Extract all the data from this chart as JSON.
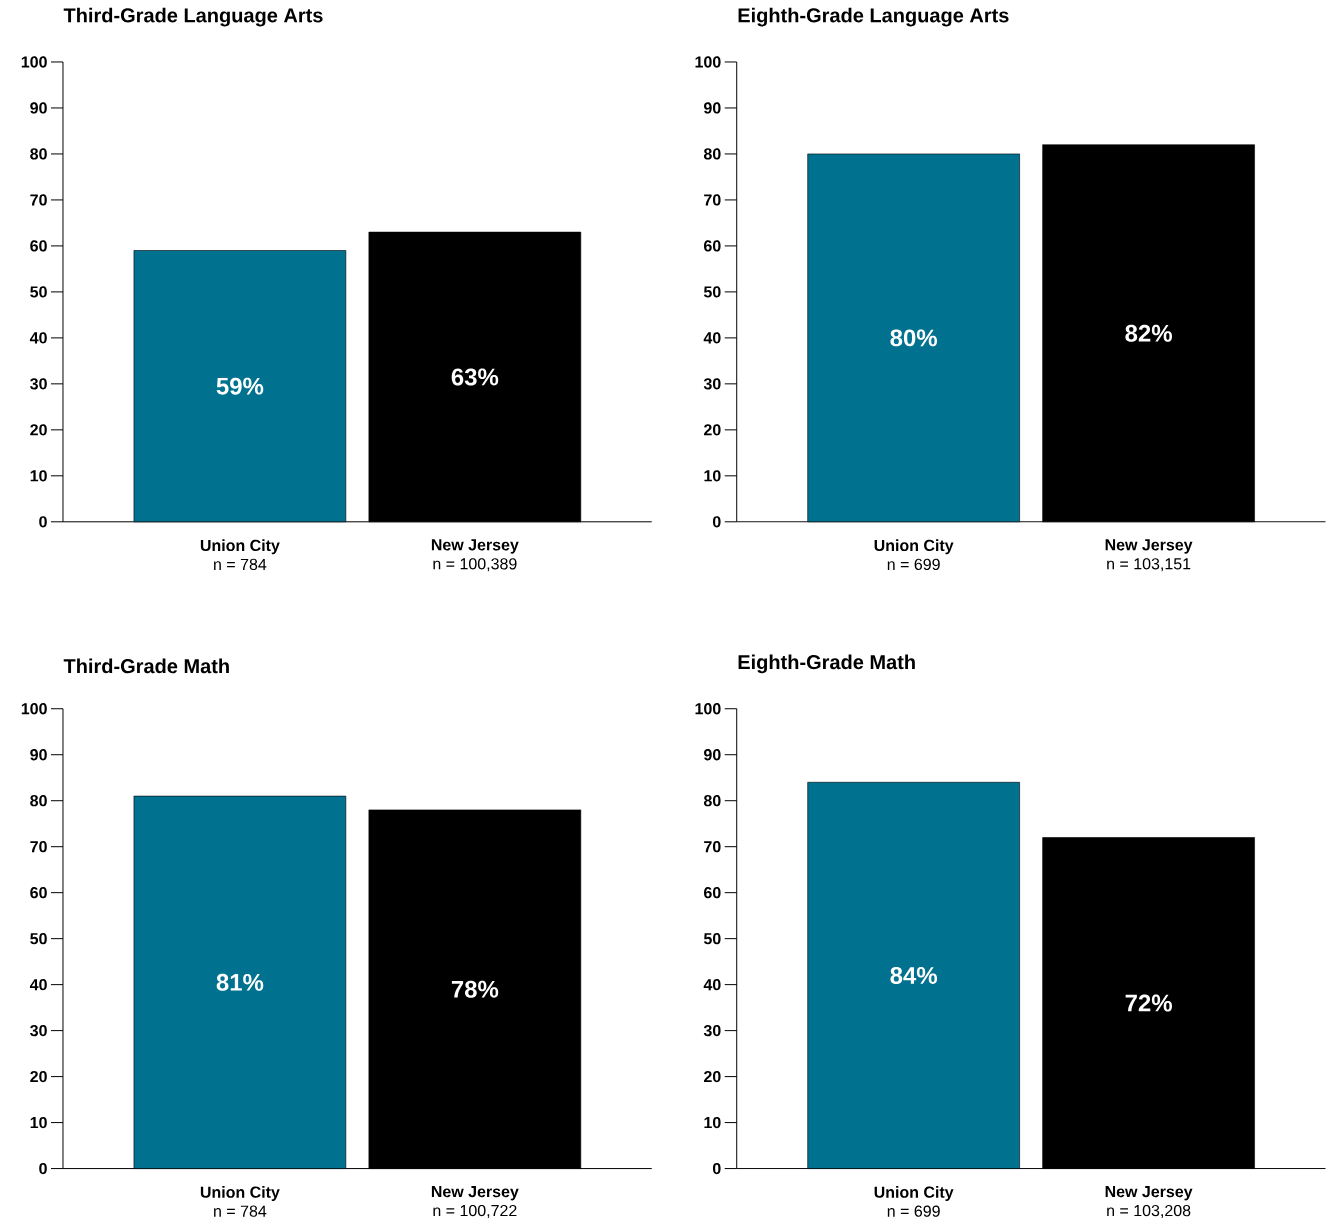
{
  "chart_data": [
    {
      "type": "bar",
      "title": "Third-Grade Language Arts",
      "categories": [
        "**Union City**\nn = 784",
        "**New Jersey**\nn = 100,389"
      ],
      "values": [
        59,
        63
      ],
      "colors": [
        "#00728f",
        "#000000"
      ],
      "value_labels": [
        "59%",
        "63%"
      ],
      "ylim": [
        0,
        100
      ],
      "yticks": [
        0,
        10,
        20,
        30,
        40,
        50,
        60,
        70,
        80,
        90,
        100
      ]
    },
    {
      "type": "bar",
      "title": "Eighth-Grade Language Arts",
      "categories": [
        "**Union City**\nn = 699",
        "**New Jersey**\nn = 103,151"
      ],
      "values": [
        80,
        82
      ],
      "colors": [
        "#00728f",
        "#000000"
      ],
      "value_labels": [
        "80%",
        "82%"
      ],
      "ylim": [
        0,
        100
      ],
      "yticks": [
        0,
        10,
        20,
        30,
        40,
        50,
        60,
        70,
        80,
        90,
        100
      ]
    },
    {
      "type": "bar",
      "title": "Third-Grade Math",
      "categories": [
        "**Union City**\nn = 784",
        "**New Jersey**\nn = 100,722"
      ],
      "values": [
        81,
        78
      ],
      "colors": [
        "#00728f",
        "#000000"
      ],
      "value_labels": [
        "81%",
        "78%"
      ],
      "ylim": [
        0,
        100
      ],
      "yticks": [
        0,
        10,
        20,
        30,
        40,
        50,
        60,
        70,
        80,
        90,
        100
      ]
    },
    {
      "type": "bar",
      "title": "Eighth-Grade Math",
      "categories": [
        "**Union City**\nn = 699",
        "**New Jersey**\nn = 103,208"
      ],
      "values": [
        84,
        72
      ],
      "colors": [
        "#00728f",
        "#000000"
      ],
      "value_labels": [
        "84%",
        "72%"
      ],
      "ylim": [
        0,
        100
      ],
      "yticks": [
        0,
        10,
        20,
        30,
        40,
        50,
        60,
        70,
        80,
        90,
        100
      ]
    }
  ]
}
